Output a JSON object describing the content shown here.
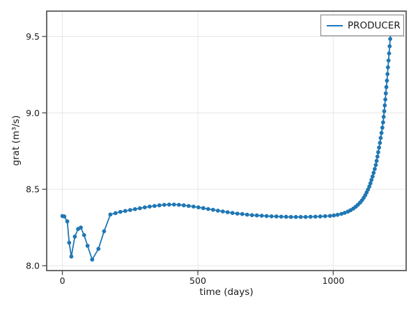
{
  "colors": {
    "series_blue": "#1f77b4",
    "grid": "#e6e6e6",
    "spine": "#5a5a5a",
    "tick": "#555555",
    "text": "#1a1a1a",
    "legend_border": "#7f7f7f",
    "background": "#ffffff"
  },
  "chart_data": {
    "type": "line",
    "title": "",
    "xlabel": "time (days)",
    "ylabel": "grat (m³/s)",
    "grid": true,
    "legend": {
      "position": "upper right",
      "entries": [
        {
          "label": "PRODUCER",
          "color": "#1f77b4"
        }
      ]
    },
    "xlim": [
      -58,
      1269
    ],
    "ylim": [
      7.968,
      9.666
    ],
    "xticks": [
      0,
      500,
      1000
    ],
    "xtick_labels": [
      "0",
      "500",
      "1000"
    ],
    "yticks": [
      8.0,
      8.5,
      9.0,
      9.5
    ],
    "ytick_labels": [
      "8.0",
      "8.5",
      "9.0",
      "9.5"
    ],
    "series": [
      {
        "name": "PRODUCER",
        "color": "#1f77b4",
        "marker": "circle",
        "marker_radius": 2.9,
        "line_width": 1.8,
        "points": [
          [
            0,
            8.325
          ],
          [
            7,
            8.322
          ],
          [
            18,
            8.29
          ],
          [
            25,
            8.15
          ],
          [
            33,
            8.06
          ],
          [
            46,
            8.19
          ],
          [
            58,
            8.24
          ],
          [
            68,
            8.25
          ],
          [
            80,
            8.2
          ],
          [
            93,
            8.13
          ],
          [
            110,
            8.04
          ],
          [
            133,
            8.11
          ],
          [
            154,
            8.225
          ],
          [
            177,
            8.335
          ],
          [
            196,
            8.344
          ],
          [
            214,
            8.352
          ],
          [
            232,
            8.358
          ],
          [
            250,
            8.364
          ],
          [
            268,
            8.37
          ],
          [
            286,
            8.376
          ],
          [
            304,
            8.382
          ],
          [
            322,
            8.387
          ],
          [
            340,
            8.391
          ],
          [
            358,
            8.395
          ],
          [
            376,
            8.398
          ],
          [
            394,
            8.4
          ],
          [
            412,
            8.4
          ],
          [
            430,
            8.398
          ],
          [
            448,
            8.395
          ],
          [
            466,
            8.391
          ],
          [
            484,
            8.387
          ],
          [
            502,
            8.382
          ],
          [
            520,
            8.377
          ],
          [
            538,
            8.371
          ],
          [
            556,
            8.366
          ],
          [
            574,
            8.36
          ],
          [
            592,
            8.355
          ],
          [
            610,
            8.35
          ],
          [
            628,
            8.345
          ],
          [
            646,
            8.341
          ],
          [
            664,
            8.338
          ],
          [
            682,
            8.334
          ],
          [
            700,
            8.331
          ],
          [
            718,
            8.329
          ],
          [
            736,
            8.327
          ],
          [
            754,
            8.325
          ],
          [
            772,
            8.323
          ],
          [
            790,
            8.322
          ],
          [
            808,
            8.321
          ],
          [
            826,
            8.32
          ],
          [
            844,
            8.319
          ],
          [
            862,
            8.319
          ],
          [
            880,
            8.319
          ],
          [
            898,
            8.319
          ],
          [
            916,
            8.32
          ],
          [
            934,
            8.321
          ],
          [
            952,
            8.322
          ],
          [
            970,
            8.324
          ],
          [
            988,
            8.326
          ],
          [
            1002,
            8.329
          ],
          [
            1016,
            8.333
          ],
          [
            1030,
            8.339
          ],
          [
            1042,
            8.346
          ],
          [
            1054,
            8.354
          ],
          [
            1064,
            8.363
          ],
          [
            1074,
            8.374
          ],
          [
            1083,
            8.386
          ],
          [
            1091,
            8.399
          ],
          [
            1099,
            8.413
          ],
          [
            1106,
            8.428
          ],
          [
            1112,
            8.444
          ],
          [
            1118,
            8.461
          ],
          [
            1123,
            8.479
          ],
          [
            1128,
            8.498
          ],
          [
            1133,
            8.518
          ],
          [
            1137,
            8.539
          ],
          [
            1141,
            8.561
          ],
          [
            1145,
            8.584
          ],
          [
            1149,
            8.608
          ],
          [
            1153,
            8.633
          ],
          [
            1157,
            8.659
          ],
          [
            1160,
            8.686
          ],
          [
            1163,
            8.714
          ],
          [
            1166,
            8.743
          ],
          [
            1169,
            8.773
          ],
          [
            1172,
            8.804
          ],
          [
            1175,
            8.836
          ],
          [
            1178,
            8.869
          ],
          [
            1181,
            8.903
          ],
          [
            1184,
            8.938
          ],
          [
            1186,
            8.974
          ],
          [
            1188,
            9.011
          ],
          [
            1190,
            9.049
          ],
          [
            1192,
            9.088
          ],
          [
            1194,
            9.128
          ],
          [
            1196,
            9.169
          ],
          [
            1198,
            9.211
          ],
          [
            1200,
            9.254
          ],
          [
            1202,
            9.298
          ],
          [
            1204,
            9.343
          ],
          [
            1206,
            9.389
          ],
          [
            1208,
            9.436
          ],
          [
            1210,
            9.484
          ],
          [
            1212,
            9.52
          ]
        ]
      }
    ]
  }
}
